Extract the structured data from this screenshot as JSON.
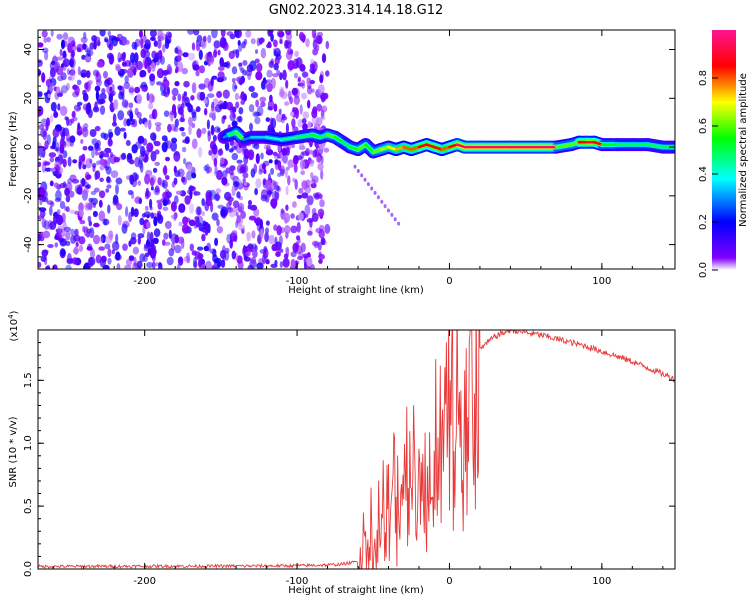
{
  "title": "GN02.2023.314.14.18.G12",
  "chart_data": [
    {
      "type": "heatmap",
      "xlabel": "Height of straight line (km)",
      "ylabel": "Frequency (Hz)",
      "xlim": [
        -270,
        148
      ],
      "ylim": [
        -50,
        48
      ],
      "xticks": [
        -200,
        -100,
        0,
        100
      ],
      "yticks": [
        -40,
        -20,
        0,
        20,
        40
      ],
      "grid": false,
      "noise_region_x": [
        -270,
        -80
      ],
      "ridge": {
        "x": [
          -148,
          -145,
          -140,
          -135,
          -130,
          -120,
          -110,
          -100,
          -90,
          -85,
          -80,
          -75,
          -70,
          -65,
          -60,
          -55,
          -50,
          -45,
          -40,
          -35,
          -30,
          -25,
          -20,
          -15,
          -10,
          -5,
          0,
          5,
          10,
          20,
          40,
          60,
          70,
          80,
          85,
          90,
          95,
          100,
          110,
          120,
          130,
          140,
          148
        ],
        "y": [
          4,
          5,
          6,
          3,
          4,
          4,
          3,
          4,
          5,
          4,
          5,
          4,
          2,
          0,
          -1,
          1,
          -2,
          -1,
          0,
          -1,
          0,
          -1,
          0,
          1,
          0,
          -1,
          0,
          1,
          0,
          0,
          0,
          0,
          0,
          1,
          2,
          2,
          2,
          1,
          1,
          1,
          1,
          0,
          0
        ],
        "intensity": [
          0.3,
          0.5,
          0.6,
          0.3,
          0.35,
          0.4,
          0.45,
          0.5,
          0.55,
          0.5,
          0.6,
          0.55,
          0.5,
          0.55,
          0.6,
          0.55,
          0.6,
          0.65,
          0.7,
          0.75,
          0.8,
          0.8,
          0.85,
          0.85,
          0.85,
          0.8,
          0.85,
          0.95,
          0.95,
          0.95,
          0.95,
          0.95,
          0.6,
          0.6,
          0.85,
          0.9,
          0.85,
          0.55,
          0.5,
          0.5,
          0.5,
          0.5,
          0.5
        ]
      },
      "colorbar": {
        "label": "Normalized spectral amplitude",
        "range": [
          0,
          1
        ],
        "ticks": [
          0.0,
          0.2,
          0.4,
          0.6,
          0.8
        ],
        "colormap": [
          "#ffffff",
          "#8000ff",
          "#0000ff",
          "#00ffff",
          "#00ff00",
          "#ffff00",
          "#ff0000",
          "#ff1493"
        ]
      }
    },
    {
      "type": "line",
      "xlabel": "Height of straight line (km)",
      "ylabel": "SNR (10 * v/v)",
      "scale_label": "(x10",
      "scale_exp": "4",
      "scale_close": ")",
      "xlim": [
        -270,
        148
      ],
      "ylim": [
        0,
        19000
      ],
      "xticks": [
        -200,
        -100,
        0,
        100
      ],
      "yticks": [
        0,
        5000,
        10000,
        15000
      ],
      "ytick_labels": [
        "0.0",
        "0.5",
        "1.0",
        "1.5"
      ],
      "grid": false,
      "series": [
        {
          "color": "#e83a3a",
          "x": [
            -270,
            -200,
            -150,
            -100,
            -80,
            -70,
            -60,
            -58,
            -55,
            -52,
            -50,
            -48,
            -46,
            -44,
            -42,
            -40,
            -38,
            -36,
            -34,
            -32,
            -30,
            -28,
            -26,
            -24,
            -22,
            -20,
            -18,
            -16,
            -14,
            -12,
            -10,
            -8,
            -6,
            -4,
            -2,
            0,
            5,
            10,
            20,
            30,
            40,
            50,
            60,
            70,
            80,
            90,
            100,
            110,
            120,
            130,
            140,
            148
          ],
          "y": [
            200,
            220,
            230,
            260,
            320,
            380,
            600,
            2000,
            2500,
            3500,
            4000,
            4200,
            4500,
            5000,
            5500,
            6000,
            6500,
            6800,
            7000,
            7500,
            8000,
            8500,
            9000,
            9500,
            9800,
            10200,
            10500,
            11000,
            11500,
            12000,
            12500,
            12800,
            13000,
            13500,
            13800,
            14000,
            15000,
            16000,
            17500,
            18500,
            19000,
            18800,
            18600,
            18300,
            18000,
            17700,
            17300,
            16900,
            16500,
            16000,
            15500,
            15100
          ]
        }
      ]
    }
  ]
}
